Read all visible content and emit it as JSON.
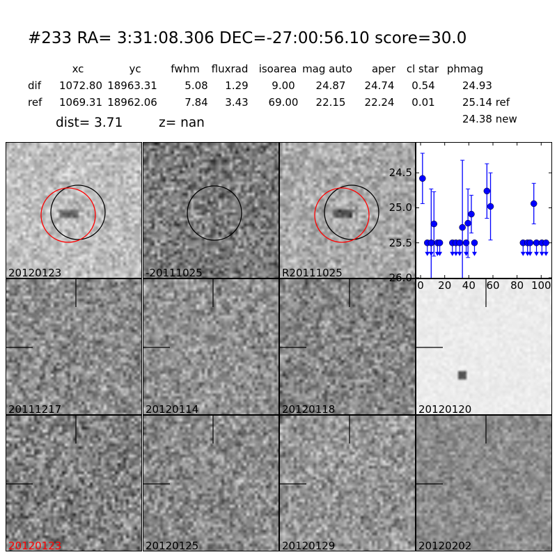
{
  "header": {
    "title": "#233   RA= 3:31:08.306 DEC=-27:00:56.10      score=30.0",
    "columns": [
      "xc",
      "yc",
      "fwhm",
      "fluxrad",
      "isoarea",
      "mag auto",
      "aper",
      "cl star",
      "phmag"
    ],
    "rows": [
      {
        "label": "dif",
        "values": [
          "1072.80",
          "18963.31",
          "5.08",
          "1.29",
          "9.00",
          "24.87",
          "24.74",
          "0.54",
          "24.93"
        ]
      },
      {
        "label": "ref",
        "values": [
          "1069.31",
          "18962.06",
          "7.84",
          "3.43",
          "69.00",
          "22.15",
          "22.24",
          "0.01",
          "25.14 ref"
        ]
      }
    ],
    "extra_phmag": "24.38 new",
    "dist": "dist=  3.71",
    "z": "z=   nan"
  },
  "stamps": [
    {
      "label": "20120123",
      "label_color": "#000000",
      "brightness": 190,
      "contrast": 28,
      "circles": "red-black"
    },
    {
      "label": "-20111025",
      "label_color": "#000000",
      "brightness": 125,
      "contrast": 45,
      "circles": "black"
    },
    {
      "label": "R20111025",
      "label_color": "#000000",
      "brightness": 170,
      "contrast": 30,
      "circles": "red-black"
    },
    {
      "label": "20111217",
      "label_color": "#000000",
      "brightness": 140,
      "contrast": 40,
      "circles": "crosshair"
    },
    {
      "label": "20120114",
      "label_color": "#000000",
      "brightness": 145,
      "contrast": 38,
      "circles": "crosshair"
    },
    {
      "label": "20120118",
      "label_color": "#000000",
      "brightness": 135,
      "contrast": 40,
      "circles": "crosshair"
    },
    {
      "label": "20120120",
      "label_color": "#000000",
      "brightness": 236,
      "contrast": 6,
      "circles": "crosshair"
    },
    {
      "label": "20120123",
      "label_color": "#ff0000",
      "brightness": 130,
      "contrast": 45,
      "circles": "crosshair"
    },
    {
      "label": "20120125",
      "label_color": "#000000",
      "brightness": 140,
      "contrast": 40,
      "circles": "crosshair"
    },
    {
      "label": "20120129",
      "label_color": "#000000",
      "brightness": 150,
      "contrast": 38,
      "circles": "crosshair"
    },
    {
      "label": "20120202",
      "label_color": "#000000",
      "brightness": 140,
      "contrast": 25,
      "circles": "crosshair"
    }
  ],
  "chart_data": {
    "type": "scatter",
    "title": "",
    "xlabel": "",
    "ylabel": "",
    "xlim": [
      -3.5,
      108.5
    ],
    "ylim": [
      26.0,
      24.07
    ],
    "y_inverted": true,
    "xticks": [
      0,
      20,
      40,
      60,
      80,
      100
    ],
    "yticks": [
      "24.5",
      "25.0",
      "25.5",
      "26.0"
    ],
    "color": "#0000ff",
    "detections": [
      {
        "x": 1.6,
        "y": 24.58,
        "err": 0.36
      },
      {
        "x": 8.8,
        "y": 25.5,
        "err": 0.77
      },
      {
        "x": 11.1,
        "y": 25.23,
        "err": 0.46
      },
      {
        "x": 34.7,
        "y": 25.28,
        "err": 0.96
      },
      {
        "x": 39.3,
        "y": 25.22,
        "err": 0.49
      },
      {
        "x": 42.1,
        "y": 25.09,
        "err": 0.27
      },
      {
        "x": 55.0,
        "y": 24.76,
        "err": 0.39
      },
      {
        "x": 58.0,
        "y": 24.98,
        "err": 0.48
      },
      {
        "x": 93.9,
        "y": 24.94,
        "err": 0.29
      }
    ],
    "upper_limits": {
      "y": 25.5,
      "x": [
        5.6,
        8.8,
        14.0,
        15.9,
        26.4,
        29.3,
        32.4,
        37.8,
        44.7,
        85.0,
        88.7,
        90.8,
        96.1,
        100.6,
        104.0
      ]
    }
  }
}
